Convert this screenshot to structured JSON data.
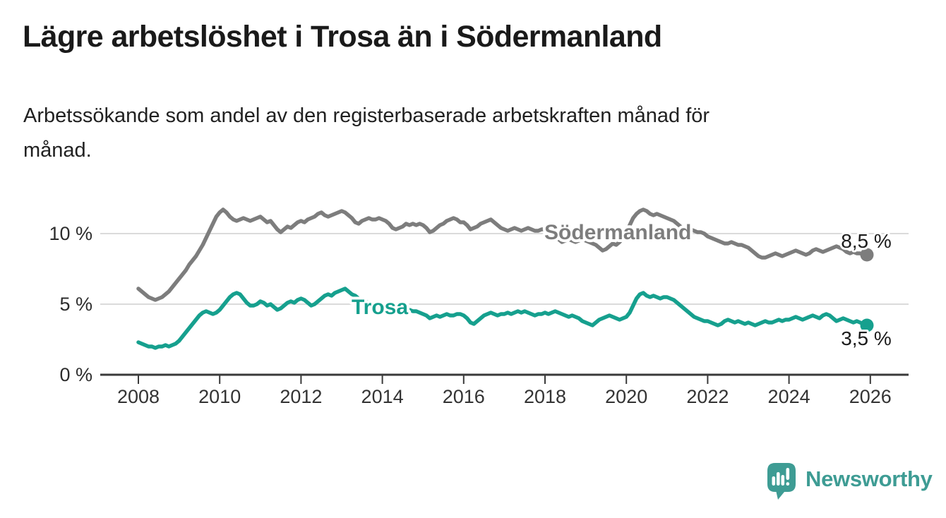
{
  "title": "Lägre arbetslöshet i Trosa än i Södermanland",
  "subtitle": "Arbetssökande som andel av den registerbaserade arbetskraften månad för månad.",
  "subtitle_lines": [
    "Arbetssökande som andel av den registerbaserade arbetskraften månad för",
    "månad."
  ],
  "branding": {
    "logo_text": "Newsworthy",
    "logo_icon": "newsworthy-speech-bubble-bar-chart-icon",
    "logo_color": "#3e9c94"
  },
  "chart_data": {
    "type": "line",
    "title": "Lägre arbetslöshet i Trosa än i Södermanland",
    "frequency": "monthly",
    "x_domain": [
      "2008-01",
      "2025-12"
    ],
    "x_ticks": [
      2008,
      2010,
      2012,
      2014,
      2016,
      2018,
      2020,
      2022,
      2024,
      2026
    ],
    "y_ticks": [
      {
        "value": 0,
        "label": "0 %"
      },
      {
        "value": 5,
        "label": "5 %"
      },
      {
        "value": 10,
        "label": "10 %"
      }
    ],
    "ylim": [
      0,
      12.6
    ],
    "grid": "horizontal",
    "legend_position": "inline-labels",
    "series": [
      {
        "name": "Södermanland",
        "color": "#7d7d7d",
        "end_label": "8,5 %",
        "end_value": 8.5,
        "values": [
          6.1,
          5.9,
          5.7,
          5.5,
          5.4,
          5.3,
          5.4,
          5.5,
          5.7,
          5.9,
          6.2,
          6.5,
          6.8,
          7.1,
          7.4,
          7.8,
          8.1,
          8.4,
          8.8,
          9.2,
          9.7,
          10.2,
          10.7,
          11.2,
          11.5,
          11.7,
          11.5,
          11.2,
          11.0,
          10.9,
          11.0,
          11.1,
          11.0,
          10.9,
          11.0,
          11.1,
          11.2,
          11.0,
          10.8,
          10.9,
          10.6,
          10.3,
          10.1,
          10.3,
          10.5,
          10.4,
          10.6,
          10.8,
          10.9,
          10.8,
          11.0,
          11.1,
          11.2,
          11.4,
          11.5,
          11.3,
          11.2,
          11.3,
          11.4,
          11.5,
          11.6,
          11.5,
          11.3,
          11.1,
          10.8,
          10.7,
          10.9,
          11.0,
          11.1,
          11.0,
          11.0,
          11.1,
          11.0,
          10.9,
          10.7,
          10.4,
          10.3,
          10.4,
          10.5,
          10.7,
          10.6,
          10.7,
          10.6,
          10.7,
          10.6,
          10.4,
          10.1,
          10.2,
          10.4,
          10.6,
          10.7,
          10.9,
          11.0,
          11.1,
          11.0,
          10.8,
          10.8,
          10.6,
          10.3,
          10.4,
          10.5,
          10.7,
          10.8,
          10.9,
          11.0,
          10.8,
          10.6,
          10.4,
          10.3,
          10.2,
          10.3,
          10.4,
          10.3,
          10.2,
          10.3,
          10.4,
          10.3,
          10.2,
          10.2,
          10.3,
          10.3,
          10.2,
          10.0,
          9.8,
          9.6,
          9.4,
          9.5,
          9.6,
          9.5,
          9.4,
          9.5,
          9.6,
          9.5,
          9.4,
          9.3,
          9.2,
          9.0,
          8.8,
          8.9,
          9.1,
          9.3,
          9.2,
          9.4,
          9.7,
          10.1,
          10.6,
          11.1,
          11.4,
          11.6,
          11.7,
          11.6,
          11.4,
          11.3,
          11.4,
          11.3,
          11.2,
          11.1,
          11.0,
          10.9,
          10.7,
          10.5,
          10.3,
          10.2,
          10.3,
          10.2,
          10.1,
          10.1,
          10.0,
          9.8,
          9.7,
          9.6,
          9.5,
          9.4,
          9.3,
          9.3,
          9.4,
          9.3,
          9.2,
          9.2,
          9.1,
          9.0,
          8.8,
          8.6,
          8.4,
          8.3,
          8.3,
          8.4,
          8.5,
          8.6,
          8.5,
          8.4,
          8.5,
          8.6,
          8.7,
          8.8,
          8.7,
          8.6,
          8.5,
          8.6,
          8.8,
          8.9,
          8.8,
          8.7,
          8.8,
          8.9,
          9.0,
          9.1,
          9.0,
          8.9,
          8.7,
          8.6,
          8.7,
          8.6,
          8.6,
          8.5,
          8.5
        ]
      },
      {
        "name": "Trosa",
        "color": "#16a08e",
        "end_label": "3,5 %",
        "end_value": 3.5,
        "values": [
          2.3,
          2.2,
          2.1,
          2.0,
          2.0,
          1.9,
          2.0,
          2.0,
          2.1,
          2.0,
          2.1,
          2.2,
          2.4,
          2.7,
          3.0,
          3.3,
          3.6,
          3.9,
          4.2,
          4.4,
          4.5,
          4.4,
          4.3,
          4.4,
          4.6,
          4.9,
          5.2,
          5.5,
          5.7,
          5.8,
          5.7,
          5.4,
          5.1,
          4.9,
          4.9,
          5.0,
          5.2,
          5.1,
          4.9,
          5.0,
          4.8,
          4.6,
          4.7,
          4.9,
          5.1,
          5.2,
          5.1,
          5.3,
          5.4,
          5.3,
          5.1,
          4.9,
          5.0,
          5.2,
          5.4,
          5.6,
          5.7,
          5.6,
          5.8,
          5.9,
          6.0,
          6.1,
          5.9,
          5.7,
          5.6,
          5.4,
          5.3,
          5.2,
          5.1,
          5.0,
          4.9,
          4.8,
          4.7,
          4.7,
          4.6,
          4.6,
          4.5,
          4.5,
          4.4,
          4.5,
          4.6,
          4.5,
          4.5,
          4.4,
          4.3,
          4.2,
          4.0,
          4.1,
          4.2,
          4.1,
          4.2,
          4.3,
          4.2,
          4.2,
          4.3,
          4.3,
          4.2,
          4.0,
          3.7,
          3.6,
          3.8,
          4.0,
          4.2,
          4.3,
          4.4,
          4.3,
          4.2,
          4.3,
          4.3,
          4.4,
          4.3,
          4.4,
          4.5,
          4.4,
          4.5,
          4.4,
          4.3,
          4.2,
          4.3,
          4.3,
          4.4,
          4.3,
          4.4,
          4.5,
          4.4,
          4.3,
          4.2,
          4.1,
          4.2,
          4.1,
          4.0,
          3.8,
          3.7,
          3.6,
          3.5,
          3.7,
          3.9,
          4.0,
          4.1,
          4.2,
          4.1,
          4.0,
          3.9,
          4.0,
          4.1,
          4.4,
          4.9,
          5.4,
          5.7,
          5.8,
          5.6,
          5.5,
          5.6,
          5.5,
          5.4,
          5.5,
          5.5,
          5.4,
          5.3,
          5.1,
          4.9,
          4.7,
          4.5,
          4.3,
          4.1,
          4.0,
          3.9,
          3.8,
          3.8,
          3.7,
          3.6,
          3.5,
          3.6,
          3.8,
          3.9,
          3.8,
          3.7,
          3.8,
          3.7,
          3.6,
          3.7,
          3.6,
          3.5,
          3.6,
          3.7,
          3.8,
          3.7,
          3.7,
          3.8,
          3.9,
          3.8,
          3.9,
          3.9,
          4.0,
          4.1,
          4.0,
          3.9,
          4.0,
          4.1,
          4.2,
          4.1,
          4.0,
          4.2,
          4.3,
          4.2,
          4.0,
          3.8,
          3.9,
          4.0,
          3.9,
          3.8,
          3.7,
          3.8,
          3.7,
          3.6,
          3.5
        ]
      }
    ]
  }
}
